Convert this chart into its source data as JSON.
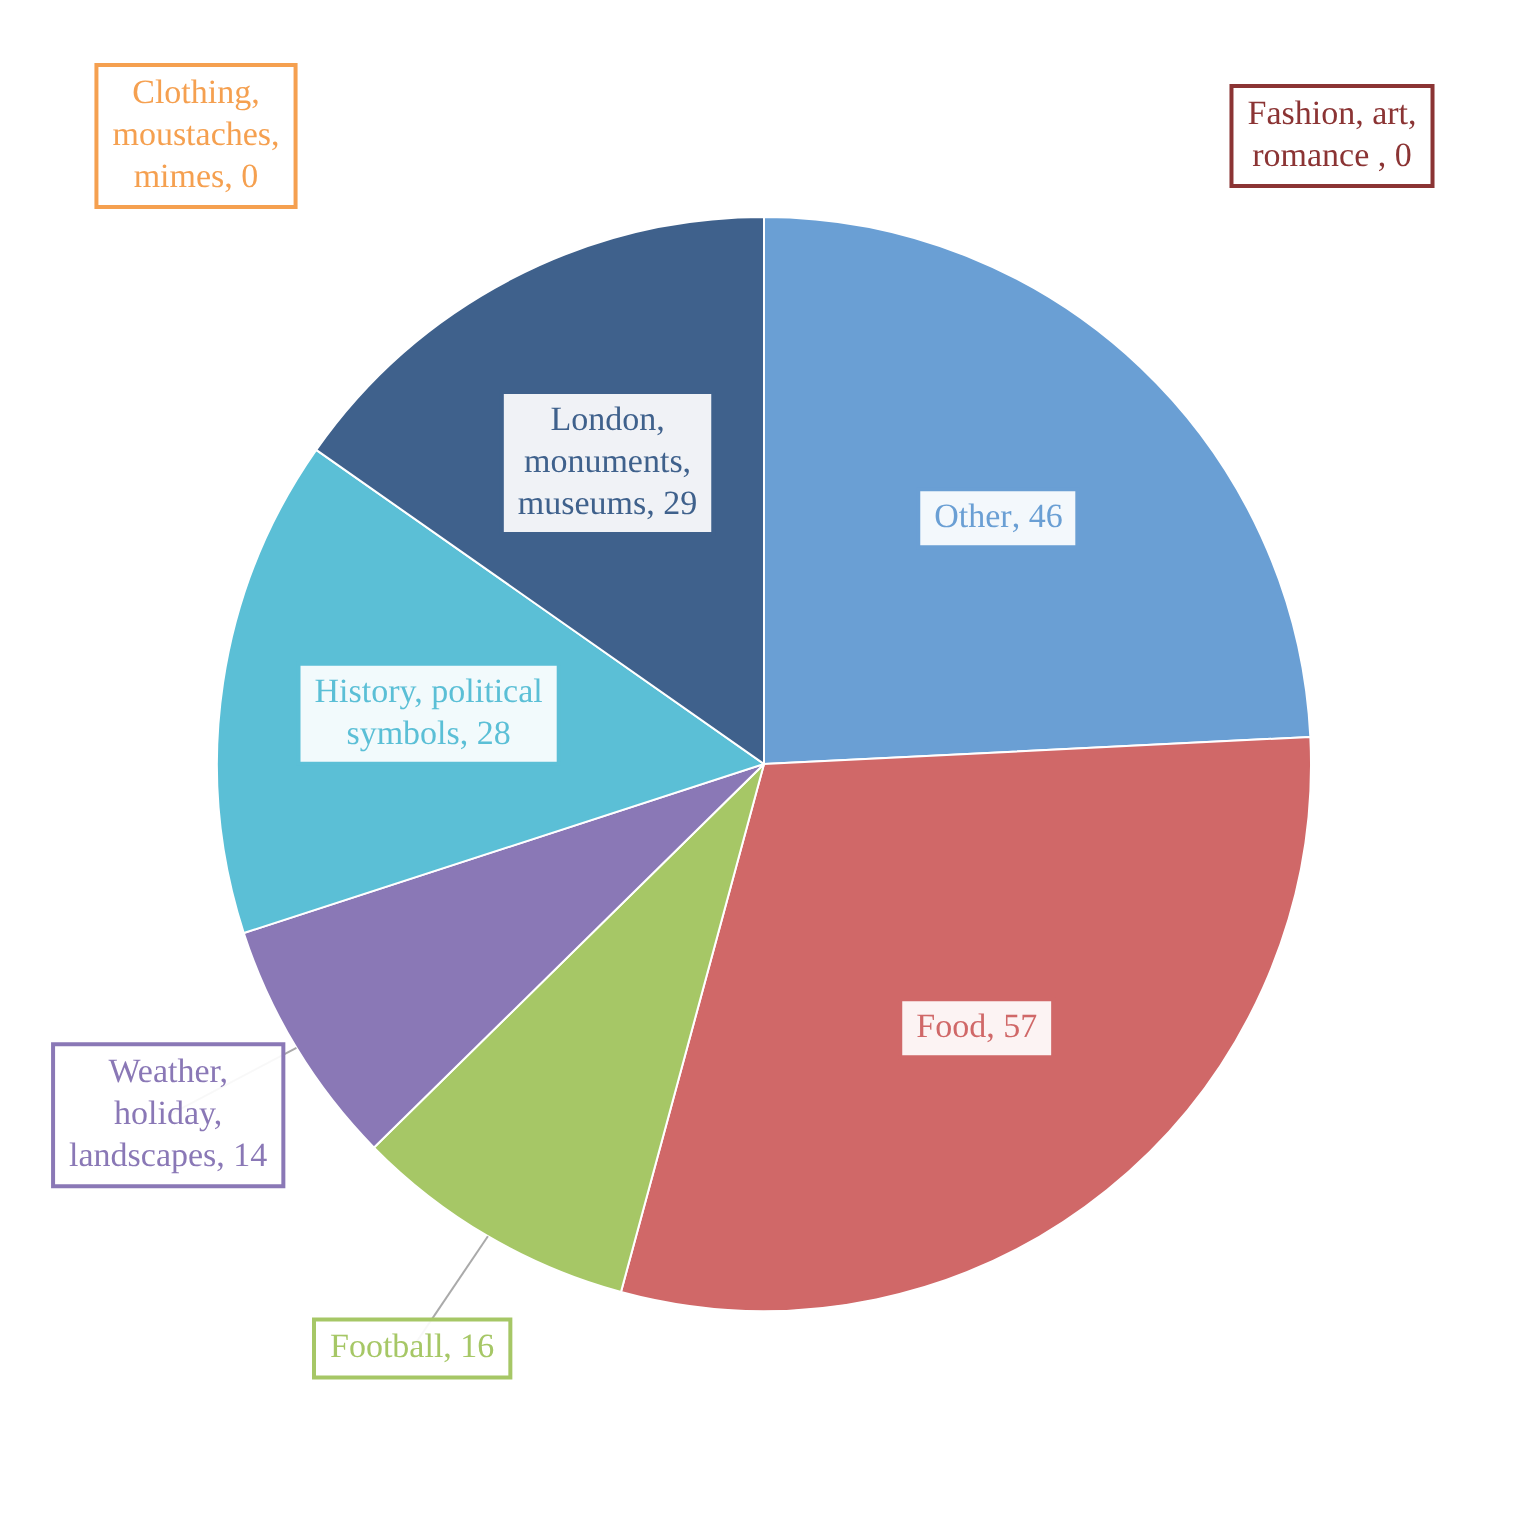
{
  "chart_data": {
    "type": "pie",
    "categories": [
      "Other",
      "Food",
      "Football",
      "Weather, holiday, landscapes",
      "History, political symbols",
      "London, monuments, museums",
      "Clothing, moustaches, mimes",
      "Fashion, art, romance "
    ],
    "values": [
      46,
      57,
      16,
      14,
      28,
      29,
      0,
      0
    ],
    "colors": [
      "#6a9fd4",
      "#d06868",
      "#a6c766",
      "#8a78b6",
      "#5bbfd6",
      "#3f618c",
      "#f5a050",
      "#8b3434"
    ],
    "value_labels": [
      ", 46",
      ", 57",
      ", 16",
      ", 14",
      ", 28",
      ", 29",
      ", 0",
      ", 0"
    ],
    "legend": false
  }
}
